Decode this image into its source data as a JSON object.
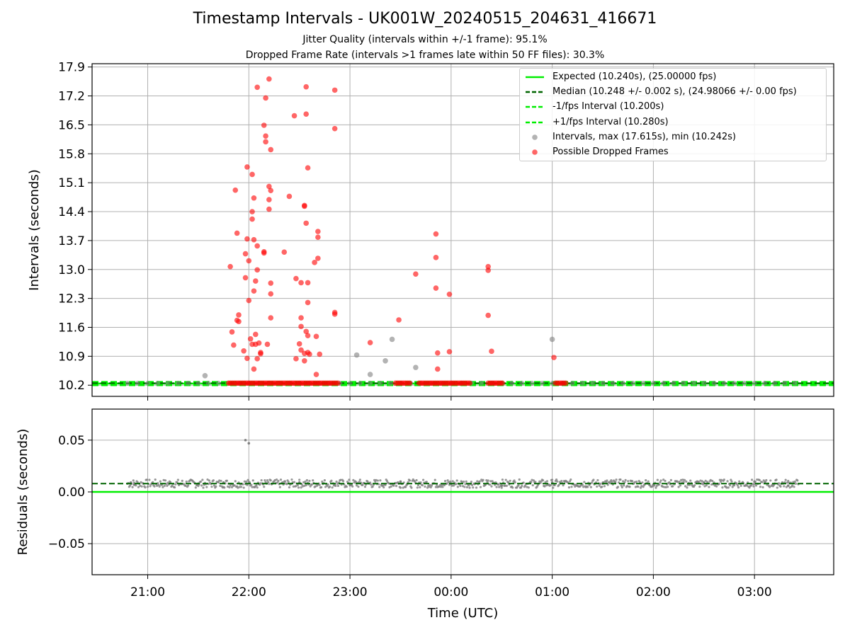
{
  "title": "Timestamp Intervals - UK001W_20240515_204631_416671",
  "subtitle_1": "Jitter Quality (intervals within +/-1 frame): 95.1%",
  "subtitle_2": "Dropped Frame Rate (intervals >1 frames late within 50 FF files): 30.3%",
  "colors": {
    "expected": "#00ee00",
    "median": "#006400",
    "interval_bound": "#00ee00",
    "intervals": "#808080",
    "dropped": "#ff0000"
  },
  "chart_data": [
    {
      "type": "scatter",
      "ylabel": "Intervals (seconds)",
      "xlim": [
        "20:27",
        "03:47"
      ],
      "ylim": [
        9.93,
        17.98
      ],
      "yticks": [
        "10.2",
        "10.9",
        "11.6",
        "12.3",
        "13.0",
        "13.7",
        "14.4",
        "15.1",
        "15.8",
        "16.5",
        "17.2",
        "17.9"
      ],
      "xticks": [
        "21:00",
        "22:00",
        "23:00",
        "00:00",
        "01:00",
        "02:00",
        "03:00"
      ],
      "grid": true,
      "legend_position": "top-right",
      "legend": [
        "Expected (10.240s), (25.00000 fps)",
        "Median (10.248 +/- 0.002 s), (24.98066 +/- 0.00 fps)",
        "-1/fps Interval (10.200s)",
        "+1/fps Interval (10.280s)",
        "Intervals, max (17.615s), min (10.242s)",
        "Possible Dropped Frames"
      ],
      "lines": {
        "expected": 10.24,
        "median": 10.248,
        "lower_interval": 10.2,
        "upper_interval": 10.28
      },
      "intervals_points": [
        [
          "21:34",
          10.43
        ],
        [
          "23:04",
          10.93
        ],
        [
          "23:12",
          10.46
        ],
        [
          "23:21",
          10.79
        ],
        [
          "23:25",
          11.31
        ],
        [
          "23:39",
          10.63
        ],
        [
          "01:00",
          11.31
        ]
      ],
      "dropped_points": [
        [
          "21:49",
          13.07
        ],
        [
          "21:50",
          11.49
        ],
        [
          "21:51",
          11.17
        ],
        [
          "21:52",
          14.92
        ],
        [
          "21:53",
          11.77
        ],
        [
          "21:53",
          13.88
        ],
        [
          "21:54",
          11.9
        ],
        [
          "21:54",
          11.74
        ],
        [
          "21:57",
          11.03
        ],
        [
          "21:58",
          12.8
        ],
        [
          "21:58",
          13.38
        ],
        [
          "21:59",
          13.74
        ],
        [
          "21:59",
          15.48
        ],
        [
          "21:59",
          10.85
        ],
        [
          "22:00",
          12.25
        ],
        [
          "22:00",
          13.21
        ],
        [
          "22:01",
          11.32
        ],
        [
          "22:02",
          11.19
        ],
        [
          "22:02",
          15.3
        ],
        [
          "22:02",
          14.22
        ],
        [
          "22:02",
          14.4
        ],
        [
          "22:03",
          13.72
        ],
        [
          "22:03",
          12.48
        ],
        [
          "22:03",
          10.59
        ],
        [
          "22:03",
          14.73
        ],
        [
          "22:04",
          11.43
        ],
        [
          "22:04",
          12.72
        ],
        [
          "22:04",
          11.19
        ],
        [
          "22:05",
          12.99
        ],
        [
          "22:05",
          17.41
        ],
        [
          "22:05",
          10.84
        ],
        [
          "22:05",
          13.57
        ],
        [
          "22:06",
          11.22
        ],
        [
          "22:07",
          10.96
        ],
        [
          "22:07",
          10.99
        ],
        [
          "22:09",
          13.43
        ],
        [
          "22:09",
          13.4
        ],
        [
          "22:09",
          16.49
        ],
        [
          "22:10",
          16.23
        ],
        [
          "22:10",
          16.09
        ],
        [
          "22:10",
          17.15
        ],
        [
          "22:11",
          11.19
        ],
        [
          "22:12",
          15.01
        ],
        [
          "22:12",
          14.46
        ],
        [
          "22:12",
          14.69
        ],
        [
          "22:12",
          17.61
        ],
        [
          "22:13",
          11.83
        ],
        [
          "22:13",
          12.41
        ],
        [
          "22:13",
          12.67
        ],
        [
          "22:13",
          14.91
        ],
        [
          "22:13",
          15.9
        ],
        [
          "22:21",
          13.42
        ],
        [
          "22:24",
          14.77
        ],
        [
          "22:27",
          16.72
        ],
        [
          "22:28",
          12.78
        ],
        [
          "22:28",
          10.84
        ],
        [
          "22:30",
          11.2
        ],
        [
          "22:31",
          12.68
        ],
        [
          "22:31",
          11.83
        ],
        [
          "22:31",
          11.62
        ],
        [
          "22:31",
          11.05
        ],
        [
          "22:33",
          14.53
        ],
        [
          "22:33",
          14.55
        ],
        [
          "22:33",
          10.79
        ],
        [
          "22:33",
          10.97
        ],
        [
          "22:34",
          11.5
        ],
        [
          "22:34",
          16.76
        ],
        [
          "22:34",
          14.12
        ],
        [
          "22:34",
          17.42
        ],
        [
          "22:35",
          11.4
        ],
        [
          "22:35",
          12.68
        ],
        [
          "22:35",
          12.2
        ],
        [
          "22:35",
          15.46
        ],
        [
          "22:35",
          10.99
        ],
        [
          "22:36",
          10.95
        ],
        [
          "22:39",
          13.17
        ],
        [
          "22:40",
          11.38
        ],
        [
          "22:40",
          10.46
        ],
        [
          "22:41",
          13.78
        ],
        [
          "22:41",
          13.27
        ],
        [
          "22:41",
          13.92
        ],
        [
          "22:42",
          10.95
        ],
        [
          "22:51",
          11.92
        ],
        [
          "22:51",
          11.96
        ],
        [
          "22:51",
          16.41
        ],
        [
          "22:51",
          17.34
        ],
        [
          "23:12",
          11.23
        ],
        [
          "23:29",
          11.78
        ],
        [
          "23:39",
          12.89
        ],
        [
          "23:51",
          13.86
        ],
        [
          "23:51",
          12.55
        ],
        [
          "23:51",
          13.29
        ],
        [
          "23:52",
          10.59
        ],
        [
          "23:52",
          10.98
        ],
        [
          "23:59",
          12.4
        ],
        [
          "23:59",
          11.01
        ],
        [
          "00:22",
          13.07
        ],
        [
          "00:22",
          12.98
        ],
        [
          "00:22",
          11.89
        ],
        [
          "00:24",
          11.02
        ],
        [
          "01:01",
          10.87
        ]
      ]
    },
    {
      "type": "scatter",
      "xlabel": "Time (UTC)",
      "ylabel": "Residuals (seconds)",
      "xlim": [
        "20:27",
        "03:47"
      ],
      "ylim": [
        -0.08,
        0.08
      ],
      "yticks": [
        "0.05",
        "0.00",
        "−0.05"
      ],
      "xticks": [
        "21:00",
        "22:00",
        "23:00",
        "00:00",
        "01:00",
        "02:00",
        "03:00"
      ],
      "grid": true,
      "lines": {
        "expected": 0.0,
        "median": 0.008
      },
      "residual_points": [
        [
          "20:50",
          0.009
        ],
        [
          "20:52",
          0.007
        ],
        [
          "21:30",
          0.008
        ],
        [
          "21:45",
          0.009
        ],
        [
          "21:58",
          0.05
        ],
        [
          "22:00",
          0.047
        ],
        [
          "22:30",
          0.009
        ],
        [
          "23:00",
          0.007
        ],
        [
          "23:30",
          0.01
        ],
        [
          "00:00",
          0.008
        ],
        [
          "00:30",
          0.006
        ],
        [
          "01:00",
          0.009
        ],
        [
          "01:30",
          0.008
        ],
        [
          "02:00",
          0.007
        ],
        [
          "02:30",
          0.009
        ],
        [
          "03:00",
          0.01
        ],
        [
          "03:20",
          0.006
        ]
      ],
      "residual_band": [
        "20:48",
        "03:26",
        0.004,
        0.012
      ]
    }
  ]
}
